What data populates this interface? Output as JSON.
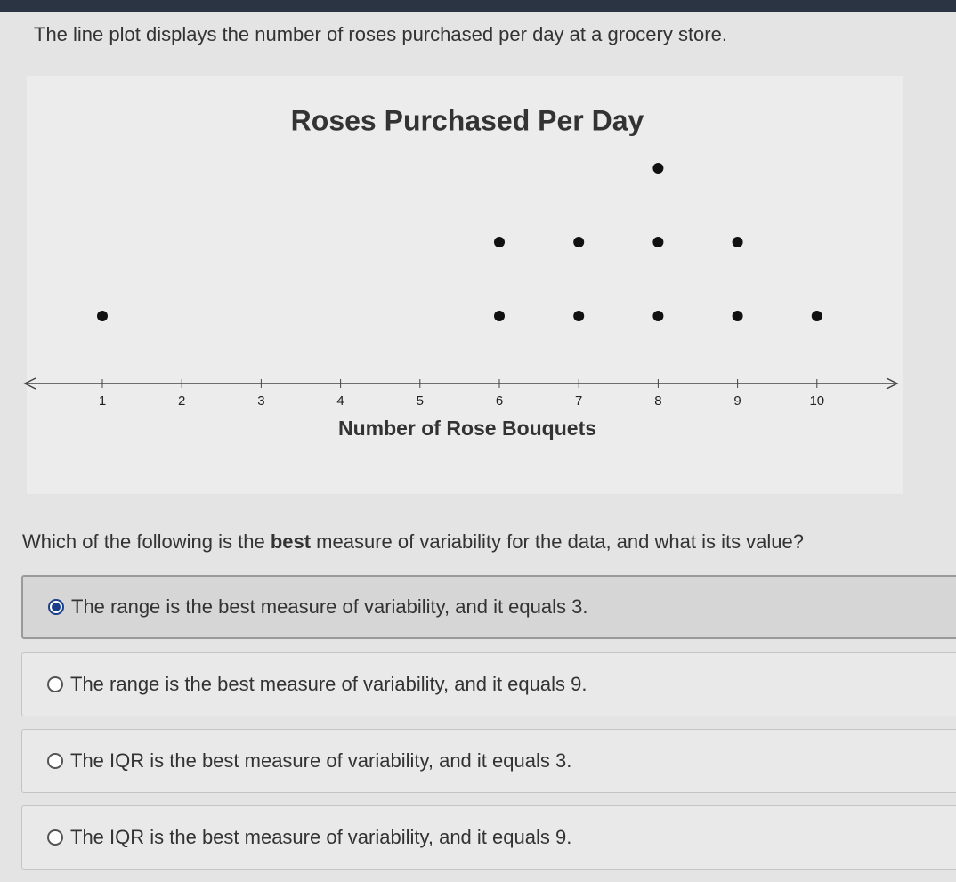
{
  "intro": "The line plot displays the number of roses purchased per day at a grocery store.",
  "chart_data": {
    "type": "dot",
    "title": "Roses Purchased Per Day",
    "x_label": "Number of Rose Bouquets",
    "x": [
      1,
      2,
      3,
      4,
      5,
      6,
      7,
      8,
      9,
      10
    ],
    "values": [
      1,
      0,
      0,
      0,
      0,
      2,
      2,
      3,
      2,
      1
    ],
    "xlim": [
      0,
      11
    ],
    "xticks": [
      1,
      2,
      3,
      4,
      5,
      6,
      7,
      8,
      9,
      10
    ],
    "color": "#111111"
  },
  "question": {
    "before": "Which of the following is the ",
    "bold": "best",
    "after": " measure of variability for the data, and what is its value?"
  },
  "options": [
    "The range is the best measure of variability, and it equals 3.",
    "The range is the best measure of variability, and it equals 9.",
    "The IQR is the best measure of variability, and it equals 3.",
    "The IQR is the best measure of variability, and it equals 9."
  ],
  "selected": 0
}
